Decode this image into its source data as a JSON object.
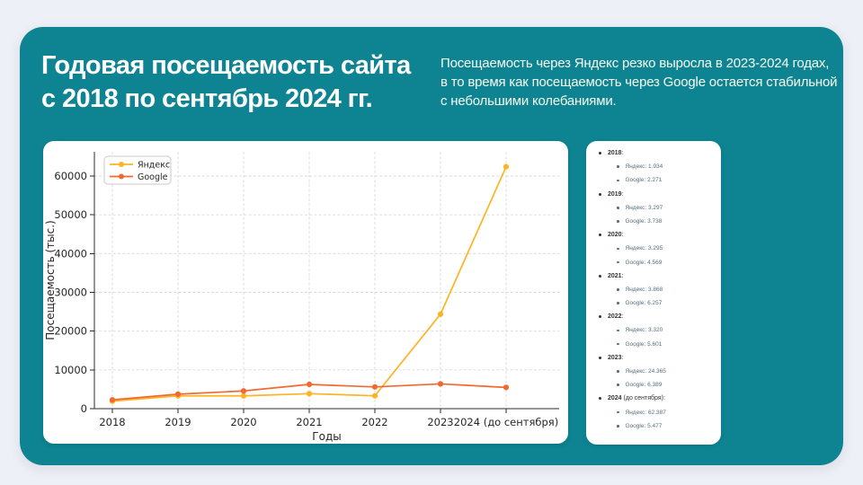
{
  "page": {
    "background": "#eef0f7",
    "card_color": "#0e8492"
  },
  "header": {
    "title_line1": "Годовая посещаемость сайта",
    "title_line2": "с 2018 по сентябрь 2024 гг.",
    "subtitle_lines": [
      "Посещаемость через Яндекс резко выросла в 2023-2024 годах,",
      "в то время как посещаемость через Google остается стабильной",
      "с небольшими колебаниями."
    ]
  },
  "chart_data": {
    "type": "line",
    "title": "",
    "xlabel": "Годы",
    "ylabel": "Посещаемость (тыс.)",
    "categories": [
      "2018",
      "2019",
      "2020",
      "2021",
      "2022",
      "2023",
      "2024 (до сентября)"
    ],
    "series": [
      {
        "name": "Яндекс",
        "color": "#FFB224",
        "values": [
          1934,
          3297,
          3295,
          3868,
          3320,
          24365,
          62387
        ]
      },
      {
        "name": "Google",
        "color": "#F2692F",
        "values": [
          2271,
          3738,
          4569,
          6257,
          5601,
          6389,
          5477
        ]
      }
    ],
    "ylim": [
      0,
      66000
    ],
    "yticks": [
      0,
      10000,
      20000,
      30000,
      40000,
      50000,
      60000
    ],
    "grid": true,
    "legend_position": "top-left"
  },
  "data_panel": {
    "items": [
      {
        "year": "2018",
        "suffix": "",
        "values": [
          {
            "name": "Яндекс",
            "value": "1.934"
          },
          {
            "name": "Google",
            "value": "2.271"
          }
        ]
      },
      {
        "year": "2019",
        "suffix": "",
        "values": [
          {
            "name": "Яндекс",
            "value": "3.297"
          },
          {
            "name": "Google",
            "value": "3.738"
          }
        ]
      },
      {
        "year": "2020",
        "suffix": "",
        "values": [
          {
            "name": "Яндекс",
            "value": "3.295"
          },
          {
            "name": "Google",
            "value": "4.569"
          }
        ]
      },
      {
        "year": "2021",
        "suffix": "",
        "values": [
          {
            "name": "Яндекс",
            "value": "3.868"
          },
          {
            "name": "Google",
            "value": "6.257"
          }
        ]
      },
      {
        "year": "2022",
        "suffix": "",
        "values": [
          {
            "name": "Яндекс",
            "value": "3.320"
          },
          {
            "name": "Google",
            "value": "5.601"
          }
        ]
      },
      {
        "year": "2023",
        "suffix": "",
        "values": [
          {
            "name": "Яндекс",
            "value": "24.365"
          },
          {
            "name": "Google",
            "value": "6.389"
          }
        ]
      },
      {
        "year": "2024",
        "suffix": " (до сентября)",
        "values": [
          {
            "name": "Яндекс",
            "value": "62.387"
          },
          {
            "name": "Google",
            "value": "5.477"
          }
        ]
      }
    ]
  }
}
